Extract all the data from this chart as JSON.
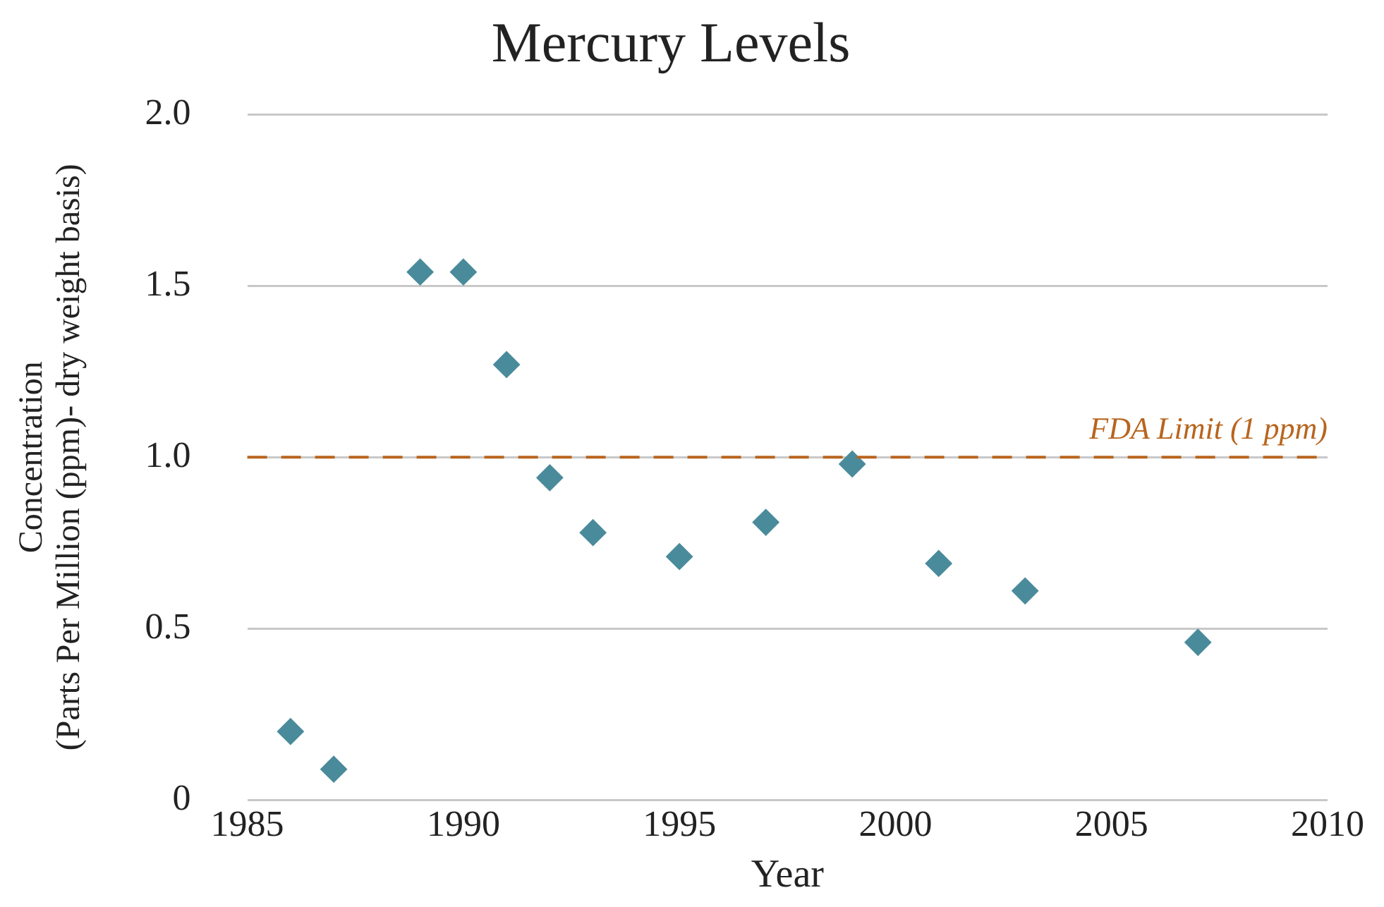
{
  "chart_data": {
    "type": "scatter",
    "title": "Mercury Levels",
    "xlabel": "Year",
    "ylabel": "Concentration\n(Parts Per Million (ppm)- dry weight basis)",
    "x": [
      1986,
      1987,
      1989,
      1990,
      1991,
      1992,
      1993,
      1995,
      1997,
      1999,
      2001,
      2003,
      2007
    ],
    "series": [
      {
        "color": "#4a8b9b",
        "values": [
          0.2,
          0.09,
          1.54,
          1.54,
          1.27,
          0.94,
          0.78,
          0.71,
          0.81,
          0.98,
          0.69,
          0.61,
          0.46
        ]
      }
    ],
    "xlim": [
      1985,
      2010
    ],
    "xticks": [
      1985,
      1990,
      1995,
      2000,
      2005,
      2010
    ],
    "ylim": [
      0,
      2
    ],
    "yticks": [
      0,
      {
        "value": 0.5,
        "label": "0.5"
      },
      {
        "value": 1,
        "label": "1.0"
      },
      {
        "value": 1.5,
        "label": "1.5"
      },
      {
        "value": 2,
        "label": "2.0"
      }
    ],
    "ref_lines": [
      {
        "axis": "y",
        "value": 1,
        "label": "FDA Limit (1 ppm)",
        "color": "#b8651e",
        "line_style": "dashed"
      }
    ],
    "grid": "y",
    "legend": false,
    "marker": "diamond"
  }
}
